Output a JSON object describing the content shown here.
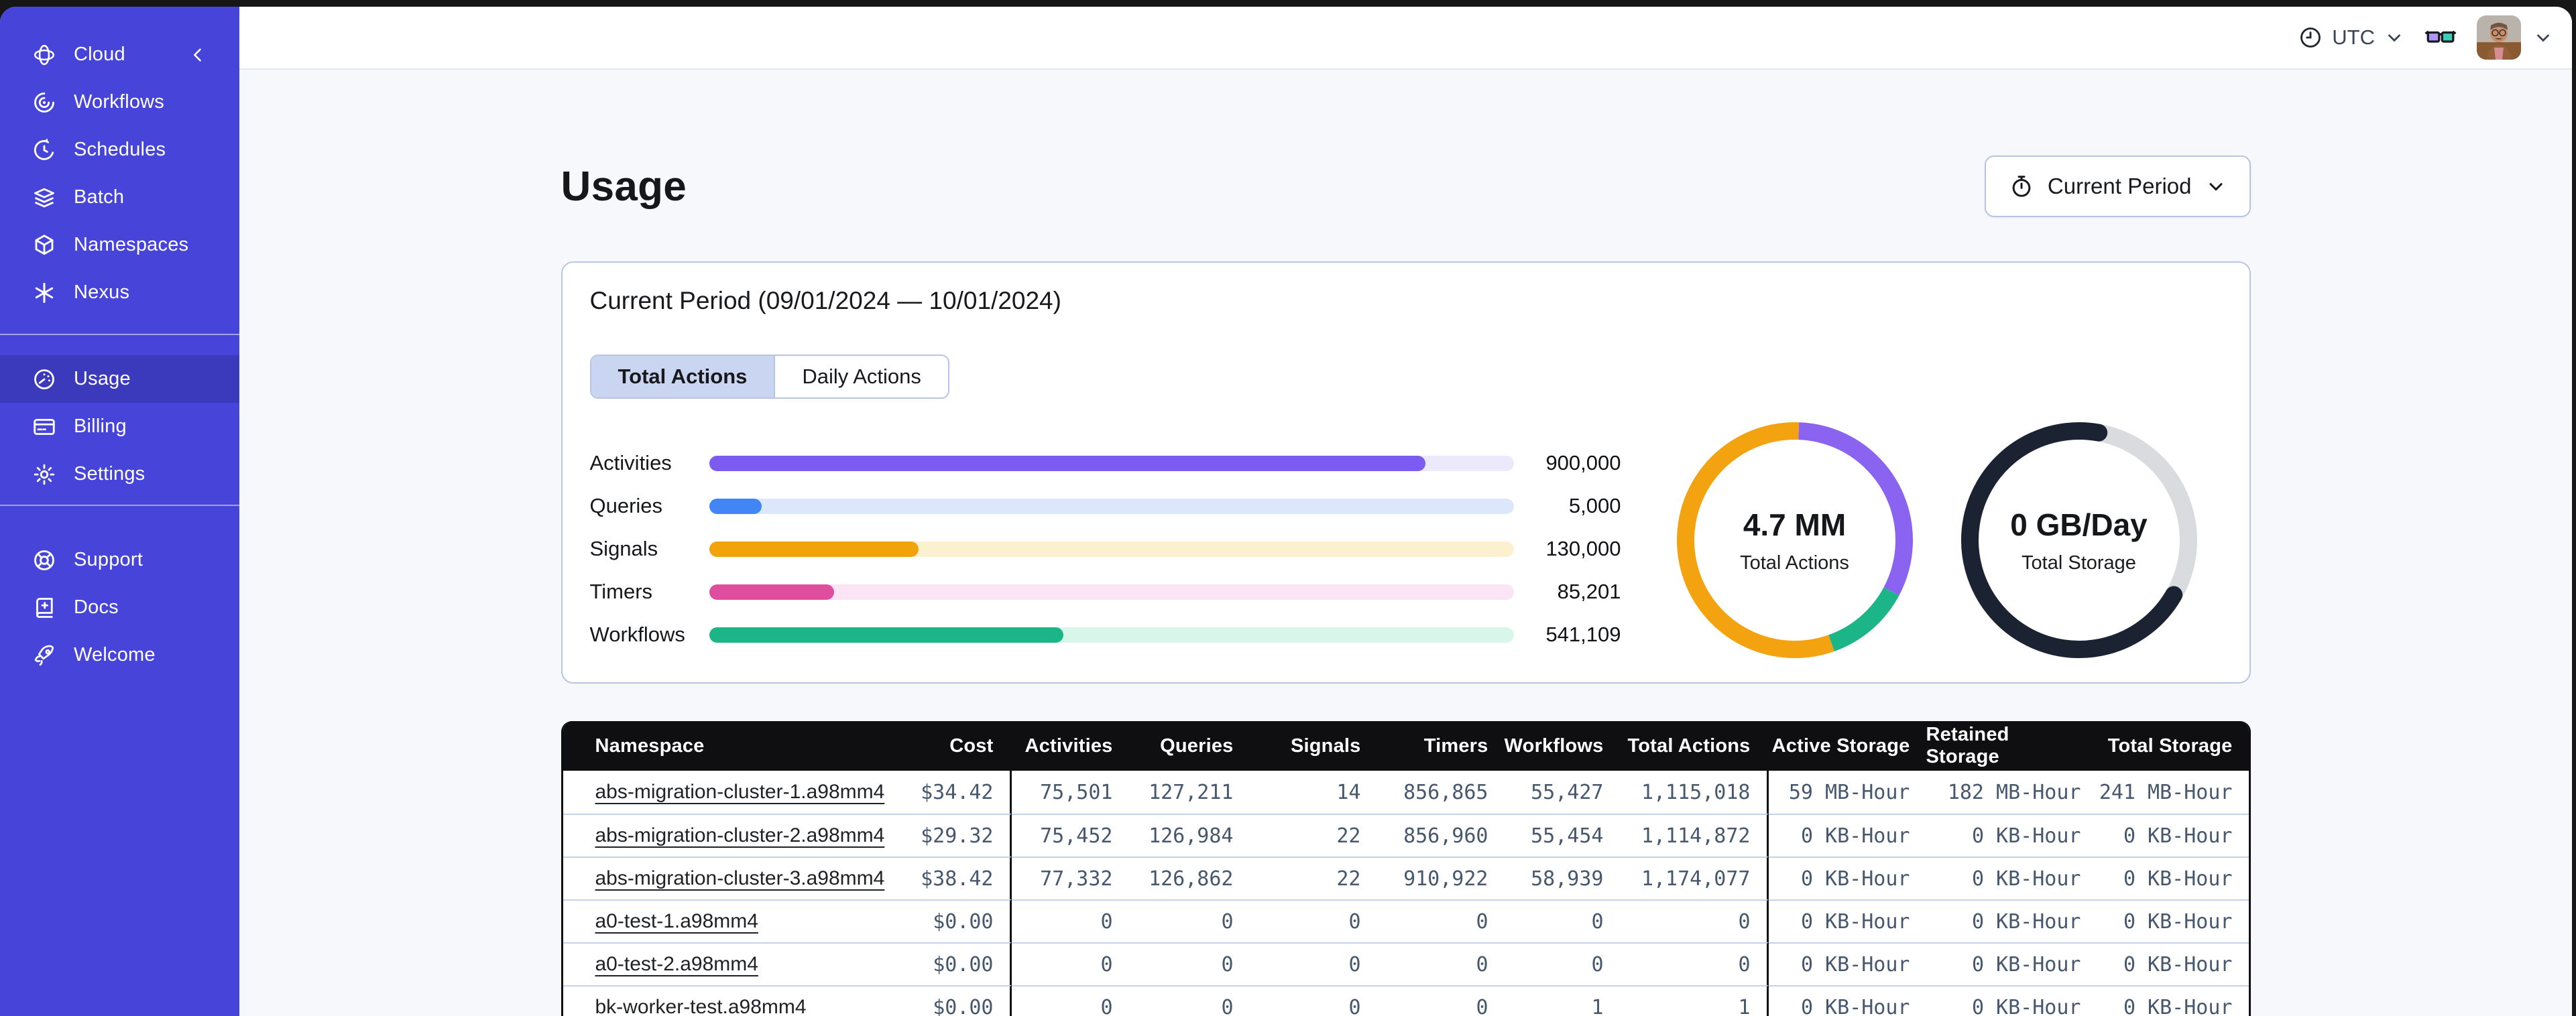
{
  "header": {
    "timezone": "UTC"
  },
  "sidebar": {
    "brand": {
      "label": "Cloud"
    },
    "main_items": [
      {
        "label": "Workflows",
        "icon": "workflows-icon"
      },
      {
        "label": "Schedules",
        "icon": "schedules-icon"
      },
      {
        "label": "Batch",
        "icon": "batch-icon"
      },
      {
        "label": "Namespaces",
        "icon": "namespaces-icon"
      },
      {
        "label": "Nexus",
        "icon": "nexus-icon"
      }
    ],
    "account_items": [
      {
        "label": "Usage",
        "icon": "usage-icon",
        "selected": true
      },
      {
        "label": "Billing",
        "icon": "billing-icon"
      },
      {
        "label": "Settings",
        "icon": "settings-icon"
      }
    ],
    "footer_items": [
      {
        "label": "Support",
        "icon": "support-icon"
      },
      {
        "label": "Docs",
        "icon": "docs-icon"
      },
      {
        "label": "Welcome",
        "icon": "welcome-icon"
      }
    ]
  },
  "page": {
    "title": "Usage",
    "period_button_label": "Current Period"
  },
  "usage_card": {
    "title": "Current Period (09/01/2024 — 10/01/2024)",
    "tabs": [
      {
        "label": "Total Actions",
        "selected": true
      },
      {
        "label": "Daily Actions",
        "selected": false
      }
    ]
  },
  "chart_data": [
    {
      "type": "bar",
      "orientation": "horizontal",
      "title": "Total Actions breakdown",
      "categories": [
        "Activities",
        "Queries",
        "Signals",
        "Timers",
        "Workflows"
      ],
      "values": [
        900000,
        5000,
        130000,
        85201,
        541109
      ],
      "value_labels": [
        "900,000",
        "5,000",
        "130,000",
        "85,201",
        "541,109"
      ],
      "fractions": [
        0.89,
        0.065,
        0.26,
        0.155,
        0.44
      ],
      "colors": [
        "#7C5BF1",
        "#4286F5",
        "#F0A30B",
        "#DF4E9E",
        "#1CB587"
      ],
      "track_colors": [
        "#ECE9FC",
        "#DCE7FB",
        "#FCF1CF",
        "#FBE5F5",
        "#D9F6EA"
      ]
    },
    {
      "type": "donut",
      "center_value": "4.7 MM",
      "center_label": "Total Actions",
      "rotation_deg": -88,
      "segments": [
        {
          "name": "activities",
          "color": "#8A63F0",
          "fraction": 0.322
        },
        {
          "name": "workflows",
          "color": "#1CB587",
          "fraction": 0.118
        },
        {
          "name": "signals",
          "color": "#F2A30F",
          "fraction": 0.56
        }
      ]
    },
    {
      "type": "donut",
      "center_value": "0 GB/Day",
      "center_label": "Total Storage",
      "rotation_deg": 30,
      "linecap": "round",
      "base_color": "#D9DBDF",
      "segments": [
        {
          "name": "storage",
          "color": "#1B2232",
          "fraction": 0.695
        }
      ]
    }
  ],
  "table": {
    "columns": [
      "Namespace",
      "Cost",
      "Activities",
      "Queries",
      "Signals",
      "Timers",
      "Workflows",
      "Total Actions",
      "Active Storage",
      "Retained Storage",
      "Total Storage"
    ],
    "rows": [
      [
        "abs-migration-cluster-1.a98mm4",
        "$34.42",
        "75,501",
        "127,211",
        "14",
        "856,865",
        "55,427",
        "1,115,018",
        "59 MB-Hour",
        "182 MB-Hour",
        "241 MB-Hour"
      ],
      [
        "abs-migration-cluster-2.a98mm4",
        "$29.32",
        "75,452",
        "126,984",
        "22",
        "856,960",
        "55,454",
        "1,114,872",
        "0 KB-Hour",
        "0 KB-Hour",
        "0 KB-Hour"
      ],
      [
        "abs-migration-cluster-3.a98mm4",
        "$38.42",
        "77,332",
        "126,862",
        "22",
        "910,922",
        "58,939",
        "1,174,077",
        "0 KB-Hour",
        "0 KB-Hour",
        "0 KB-Hour"
      ],
      [
        "a0-test-1.a98mm4",
        "$0.00",
        "0",
        "0",
        "0",
        "0",
        "0",
        "0",
        "0 KB-Hour",
        "0 KB-Hour",
        "0 KB-Hour"
      ],
      [
        "a0-test-2.a98mm4",
        "$0.00",
        "0",
        "0",
        "0",
        "0",
        "0",
        "0",
        "0 KB-Hour",
        "0 KB-Hour",
        "0 KB-Hour"
      ],
      [
        "bk-worker-test.a98mm4",
        "$0.00",
        "0",
        "0",
        "0",
        "0",
        "1",
        "1",
        "0 KB-Hour",
        "0 KB-Hour",
        "0 KB-Hour"
      ]
    ]
  },
  "colors": {
    "sidebar_bg": "#4745D9",
    "sidebar_selected": "#3B39BC",
    "card_border": "#B8C4E3",
    "table_header_bg": "#0F0F12",
    "mono_text": "#47586E",
    "content_bg": "#F6F8FB"
  }
}
